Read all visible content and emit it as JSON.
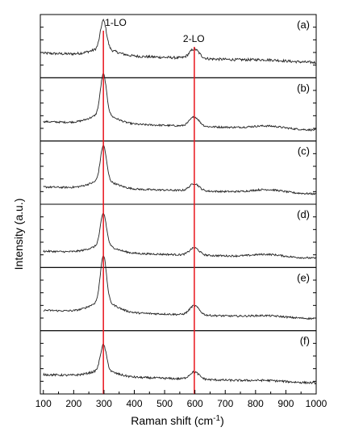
{
  "chart_data": {
    "type": "line",
    "title": "",
    "xlabel": "Raman shift (cm",
    "xlabel_sup": "-1",
    "xlabel_end": ")",
    "ylabel": "Intensity (a.u.)",
    "xlim": [
      90,
      1000
    ],
    "xticks": [
      "100",
      "200",
      "300",
      "400",
      "500",
      "600",
      "700",
      "800",
      "900",
      "1000"
    ],
    "xtick_values": [
      100,
      200,
      300,
      400,
      500,
      600,
      700,
      800,
      900,
      1000
    ],
    "grid": false,
    "reference_lines": [
      {
        "x": 298,
        "label": "1-LO",
        "color": "#e8141c"
      },
      {
        "x": 598,
        "label": "2-LO",
        "color": "#e8141c"
      }
    ],
    "panels": [
      {
        "label": "(a)",
        "base": 0.38,
        "slope": 0.0002,
        "lo1": 0.55,
        "lo2": 0.18,
        "hump": 0.02,
        "noise": 0.05
      },
      {
        "label": "(b)",
        "base": 0.28,
        "slope": 0.00018,
        "lo1": 0.78,
        "lo2": 0.18,
        "hump": 0.05,
        "noise": 0.035
      },
      {
        "label": "(c)",
        "base": 0.24,
        "slope": 0.00015,
        "lo1": 0.68,
        "lo2": 0.14,
        "hump": 0.06,
        "noise": 0.035
      },
      {
        "label": "(d)",
        "base": 0.22,
        "slope": 0.00015,
        "lo1": 0.62,
        "lo2": 0.14,
        "hump": 0.05,
        "noise": 0.035
      },
      {
        "label": "(e)",
        "base": 0.3,
        "slope": 0.00018,
        "lo1": 0.9,
        "lo2": 0.18,
        "hump": 0.03,
        "noise": 0.035
      },
      {
        "label": "(f)",
        "base": 0.28,
        "slope": 0.00018,
        "lo1": 0.5,
        "lo2": 0.14,
        "hump": 0.02,
        "noise": 0.04
      }
    ]
  }
}
